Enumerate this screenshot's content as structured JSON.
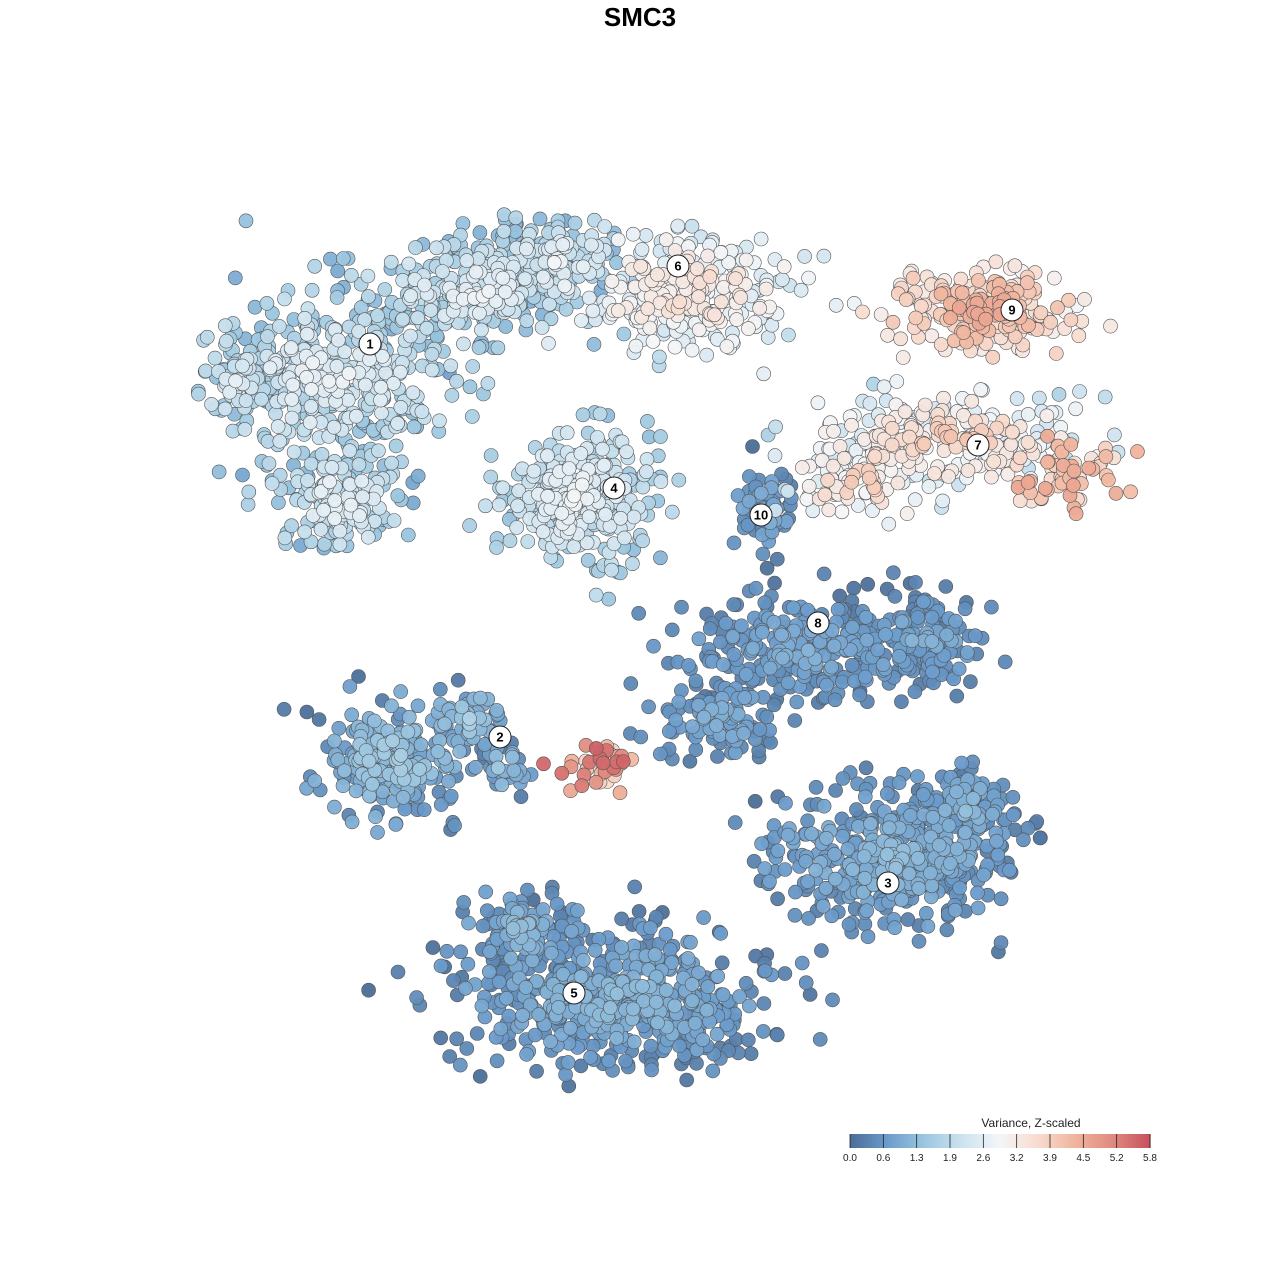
{
  "title": "SMC3",
  "chart_data": {
    "type": "scatter",
    "title": "SMC3",
    "colorbar": {
      "title": "Variance, Z-scaled",
      "min": 0.0,
      "max": 5.8,
      "ticks": [
        "0.0",
        "0.6",
        "1.3",
        "1.9",
        "2.6",
        "3.2",
        "3.9",
        "4.5",
        "5.2",
        "5.8"
      ],
      "colors": [
        "#4a6d96",
        "#6b9ccc",
        "#9cc7e0",
        "#cde3ef",
        "#f3f5f8",
        "#f8dccf",
        "#f0b49c",
        "#e08a7f",
        "#c7505c"
      ]
    },
    "grid": false,
    "axes": false,
    "clusters": [
      {
        "label": "1",
        "value_range": [
          0.6,
          3.0
        ]
      },
      {
        "label": "2",
        "value_range": [
          0.0,
          1.8
        ]
      },
      {
        "label": "3",
        "value_range": [
          0.0,
          1.4
        ]
      },
      {
        "label": "4",
        "value_range": [
          1.0,
          3.0
        ]
      },
      {
        "label": "5",
        "value_range": [
          0.0,
          1.4
        ]
      },
      {
        "label": "6",
        "value_range": [
          1.8,
          3.8
        ]
      },
      {
        "label": "7",
        "value_range": [
          1.5,
          4.2
        ]
      },
      {
        "label": "8",
        "value_range": [
          0.0,
          1.2
        ]
      },
      {
        "label": "9",
        "value_range": [
          2.6,
          4.8
        ]
      },
      {
        "label": "10",
        "value_range": [
          0.0,
          1.2
        ]
      }
    ]
  }
}
